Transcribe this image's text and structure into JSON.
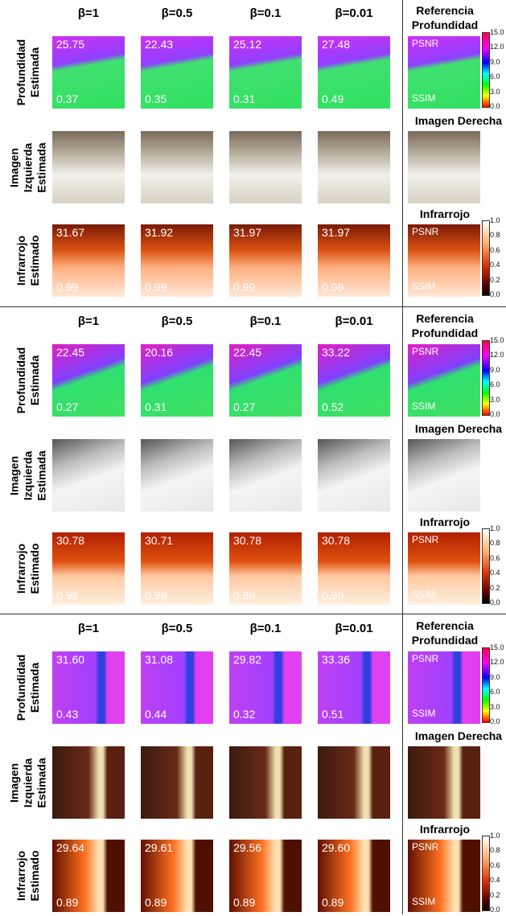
{
  "sections": [
    {
      "columns": [
        "β=1",
        "β=0.5",
        "β=0.1",
        "β=0.01"
      ],
      "rows": {
        "depth": [
          "Profundidad",
          "Estimada"
        ],
        "image": [
          "Imagen",
          "Izquierda",
          "Estimada"
        ],
        "infrared": [
          "Infrarrojo",
          "Estimado"
        ]
      },
      "depth_psnr": [
        "25.75",
        "22.43",
        "25.12",
        "27.48"
      ],
      "depth_ssim": [
        "0.37",
        "0.35",
        "0.31",
        "0.49"
      ],
      "ir_psnr": [
        "31.67",
        "31.92",
        "31.97",
        "31.97"
      ],
      "ir_ssim": [
        "0.99",
        "0.99",
        "0.99",
        "0.99"
      ],
      "reference": {
        "title": [
          "Referencia",
          "Profundidad"
        ],
        "psnr_label": "PSNR",
        "ssim_label": "SSIM",
        "depth_colorbar": [
          "15.0",
          "12.0",
          "9.0",
          "6.0",
          "3.0",
          "0.0"
        ],
        "right_image_title": "Imagen Derecha",
        "infrared_title": "Infrarrojo",
        "ir_psnr_label": "PSNR",
        "ir_ssim_label": "SSIM",
        "infrared_colorbar": [
          "1.0",
          "0.8",
          "0.6",
          "0.4",
          "0.2",
          "0.0"
        ]
      }
    },
    {
      "columns": [
        "β=1",
        "β=0.5",
        "β=0.1",
        "β=0.01"
      ],
      "rows": {
        "depth": [
          "Profundidad",
          "Estimada"
        ],
        "image": [
          "Imagen",
          "Izquierda",
          "Estimada"
        ],
        "infrared": [
          "Infrarrojo",
          "Estimado"
        ]
      },
      "depth_psnr": [
        "22.45",
        "20.16",
        "22.45",
        "33.22"
      ],
      "depth_ssim": [
        "0.27",
        "0.31",
        "0.27",
        "0.52"
      ],
      "ir_psnr": [
        "30.78",
        "30.71",
        "30.78",
        "30.78"
      ],
      "ir_ssim": [
        "0.99",
        "0.99",
        "0.99",
        "0.99"
      ],
      "reference": {
        "title": [
          "Referencia",
          "Profundidad"
        ],
        "psnr_label": "PSNR",
        "ssim_label": "SSIM",
        "depth_colorbar": [
          "15.0",
          "12.0",
          "9.0",
          "6.0",
          "3.0",
          "0.0"
        ],
        "right_image_title": "Imagen Derecha",
        "infrared_title": "Infrarrojo",
        "ir_psnr_label": "PSNR",
        "ir_ssim_label": "SSIM",
        "infrared_colorbar": [
          "1.0",
          "0.8",
          "0.6",
          "0.4",
          "0.2",
          "0.0"
        ]
      }
    },
    {
      "columns": [
        "β=1",
        "β=0.5",
        "β=0.1",
        "β=0.01"
      ],
      "rows": {
        "depth": [
          "Profundidad",
          "Estimada"
        ],
        "image": [
          "Imagen",
          "Izquierda",
          "Estimada"
        ],
        "infrared": [
          "Infrarrojo",
          "Estimado"
        ]
      },
      "depth_psnr": [
        "31.60",
        "31.08",
        "29.82",
        "33.36"
      ],
      "depth_ssim": [
        "0.43",
        "0.44",
        "0.32",
        "0.51"
      ],
      "ir_psnr": [
        "29.64",
        "29.61",
        "29.56",
        "29.60"
      ],
      "ir_ssim": [
        "0.89",
        "0.89",
        "0.89",
        "0.89"
      ],
      "reference": {
        "title": [
          "Referencia",
          "Profundidad"
        ],
        "psnr_label": "PSNR",
        "ssim_label": "SSIM",
        "depth_colorbar": [
          "15.0",
          "12.0",
          "9.0",
          "6.0",
          "3.0",
          "0.0"
        ],
        "right_image_title": "Imagen Derecha",
        "infrared_title": "Infrarrojo",
        "ir_psnr_label": "PSNR",
        "ir_ssim_label": "SSIM",
        "infrared_colorbar": [
          "1.0",
          "0.8",
          "0.6",
          "0.4",
          "0.2",
          "0.0"
        ]
      }
    }
  ]
}
